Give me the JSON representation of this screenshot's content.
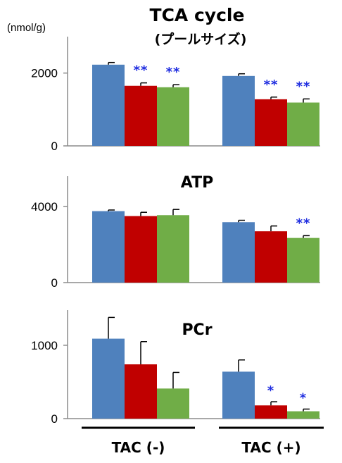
{
  "unit_label": "(nmol/g)",
  "groups": [
    "TAC (-)",
    "TAC (+)"
  ],
  "colors": {
    "series_1": "#4f81bd",
    "series_2": "#c00000",
    "series_3": "#70ad47",
    "significance": "#1f2de0"
  },
  "chart_data": [
    {
      "type": "bar",
      "title": "TCA cycle",
      "subtitle": "(プールサイズ)",
      "categories": [
        "TAC (-)",
        "TAC (+)"
      ],
      "ylim": [
        0,
        3000
      ],
      "yticks": [
        0,
        2000
      ],
      "series": [
        {
          "values": [
            2230,
            1920
          ],
          "errors": [
            60,
            60
          ]
        },
        {
          "values": [
            1650,
            1280
          ],
          "errors": [
            80,
            60
          ]
        },
        {
          "values": [
            1610,
            1190
          ],
          "errors": [
            70,
            100
          ]
        }
      ],
      "annotations": [
        [
          "",
          "**",
          "**"
        ],
        [
          "",
          "**",
          "**"
        ]
      ]
    },
    {
      "type": "bar",
      "title": "ATP",
      "categories": [
        "TAC (-)",
        "TAC (+)"
      ],
      "ylim": [
        0,
        5600
      ],
      "yticks": [
        0,
        4000
      ],
      "series": [
        {
          "values": [
            3760,
            3180
          ],
          "errors": [
            60,
            100
          ]
        },
        {
          "values": [
            3500,
            2700
          ],
          "errors": [
            200,
            280
          ]
        },
        {
          "values": [
            3550,
            2350
          ],
          "errors": [
            300,
            120
          ]
        }
      ],
      "annotations": [
        [
          "",
          "",
          ""
        ],
        [
          "",
          "",
          "**"
        ]
      ]
    },
    {
      "type": "bar",
      "title": "PCr",
      "categories": [
        "TAC (-)",
        "TAC (+)"
      ],
      "ylim": [
        0,
        1480
      ],
      "yticks": [
        0,
        1000
      ],
      "series": [
        {
          "values": [
            1090,
            640
          ],
          "errors": [
            290,
            160
          ]
        },
        {
          "values": [
            740,
            180
          ],
          "errors": [
            310,
            50
          ]
        },
        {
          "values": [
            410,
            100
          ],
          "errors": [
            220,
            30
          ]
        }
      ],
      "annotations": [
        [
          "",
          "",
          ""
        ],
        [
          "",
          "*",
          "*"
        ]
      ]
    }
  ]
}
